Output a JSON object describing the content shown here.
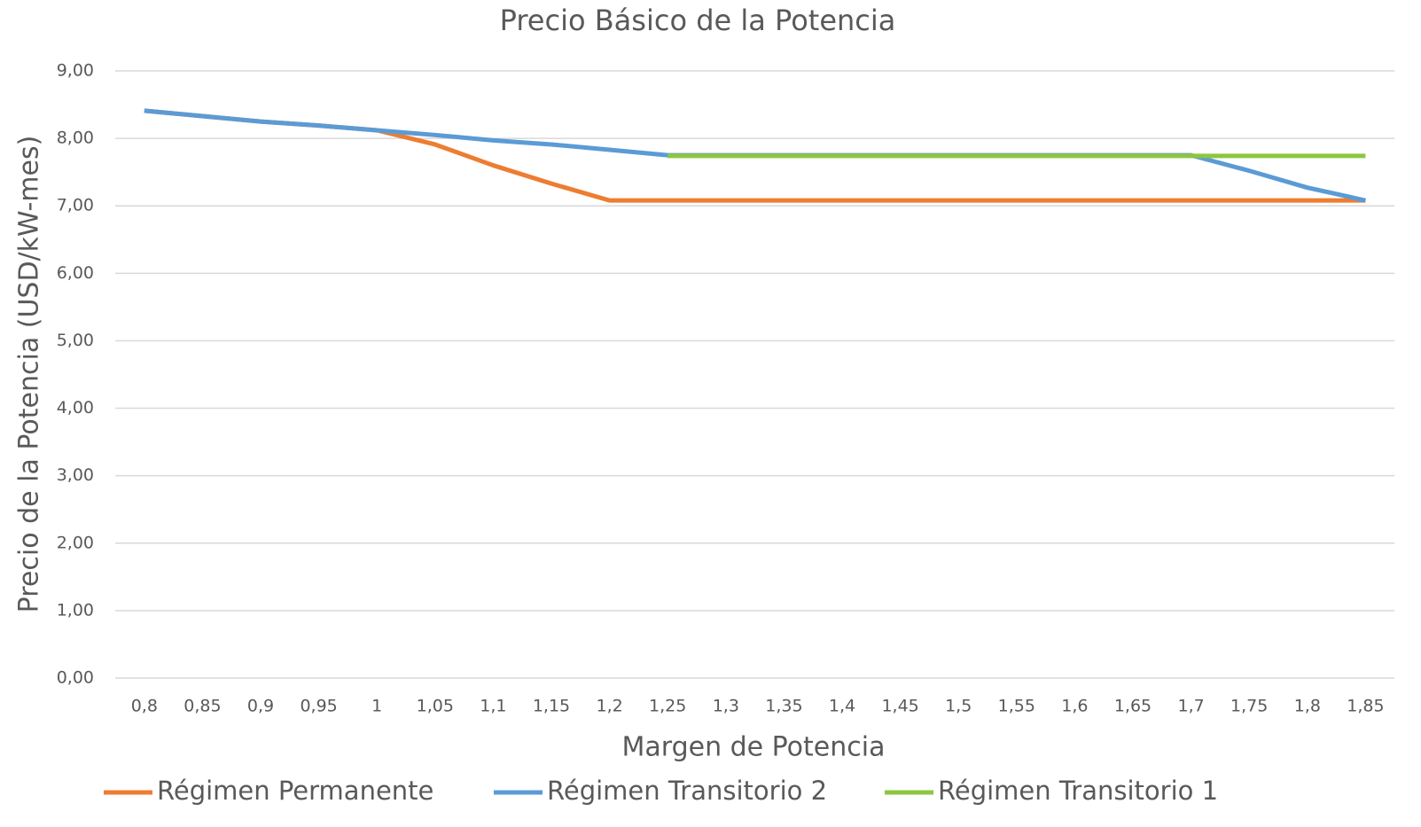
{
  "chart_data": {
    "type": "line",
    "title": "Precio Básico de la Potencia",
    "x_label": "Margen de Potencia",
    "y_label": "Precio de la Potencia (USD/kW-mes)",
    "categories": [
      "0,8",
      "0,85",
      "0,9",
      "0,95",
      "1",
      "1,05",
      "1,1",
      "1,15",
      "1,2",
      "1,25",
      "1,3",
      "1,35",
      "1,4",
      "1,45",
      "1,5",
      "1,55",
      "1,6",
      "1,65",
      "1,7",
      "1,75",
      "1,8",
      "1,85"
    ],
    "series": [
      {
        "name": "Régimen Permanente",
        "color": "#ed7d31",
        "values": [
          8.41,
          8.33,
          8.25,
          8.19,
          8.12,
          7.91,
          7.6,
          7.33,
          7.08,
          7.08,
          7.08,
          7.08,
          7.08,
          7.08,
          7.08,
          7.08,
          7.08,
          7.08,
          7.08,
          7.08,
          7.08,
          7.08
        ]
      },
      {
        "name": "Régimen Transitorio 2",
        "color": "#5b9bd5",
        "values": [
          8.41,
          8.33,
          8.25,
          8.19,
          8.12,
          8.05,
          7.97,
          7.91,
          7.83,
          7.75,
          7.75,
          7.75,
          7.75,
          7.75,
          7.75,
          7.75,
          7.75,
          7.75,
          7.75,
          7.52,
          7.27,
          7.08
        ]
      },
      {
        "name": "Régimen Transitorio 1",
        "color": "#8dc63f",
        "values": [
          null,
          null,
          null,
          null,
          null,
          null,
          null,
          null,
          null,
          7.74,
          7.74,
          7.74,
          7.74,
          7.74,
          7.74,
          7.74,
          7.74,
          7.74,
          7.74,
          7.74,
          7.74,
          7.74
        ]
      }
    ],
    "ylim": [
      0,
      9
    ],
    "yticks": [
      {
        "value": 0,
        "label": "0,00"
      },
      {
        "value": 1,
        "label": "1,00"
      },
      {
        "value": 2,
        "label": "2,00"
      },
      {
        "value": 3,
        "label": "3,00"
      },
      {
        "value": 4,
        "label": "4,00"
      },
      {
        "value": 5,
        "label": "5,00"
      },
      {
        "value": 6,
        "label": "6,00"
      },
      {
        "value": 7,
        "label": "7,00"
      },
      {
        "value": 8,
        "label": "8,00"
      },
      {
        "value": 9,
        "label": "9,00"
      }
    ],
    "grid": true,
    "legend": "bottom"
  }
}
